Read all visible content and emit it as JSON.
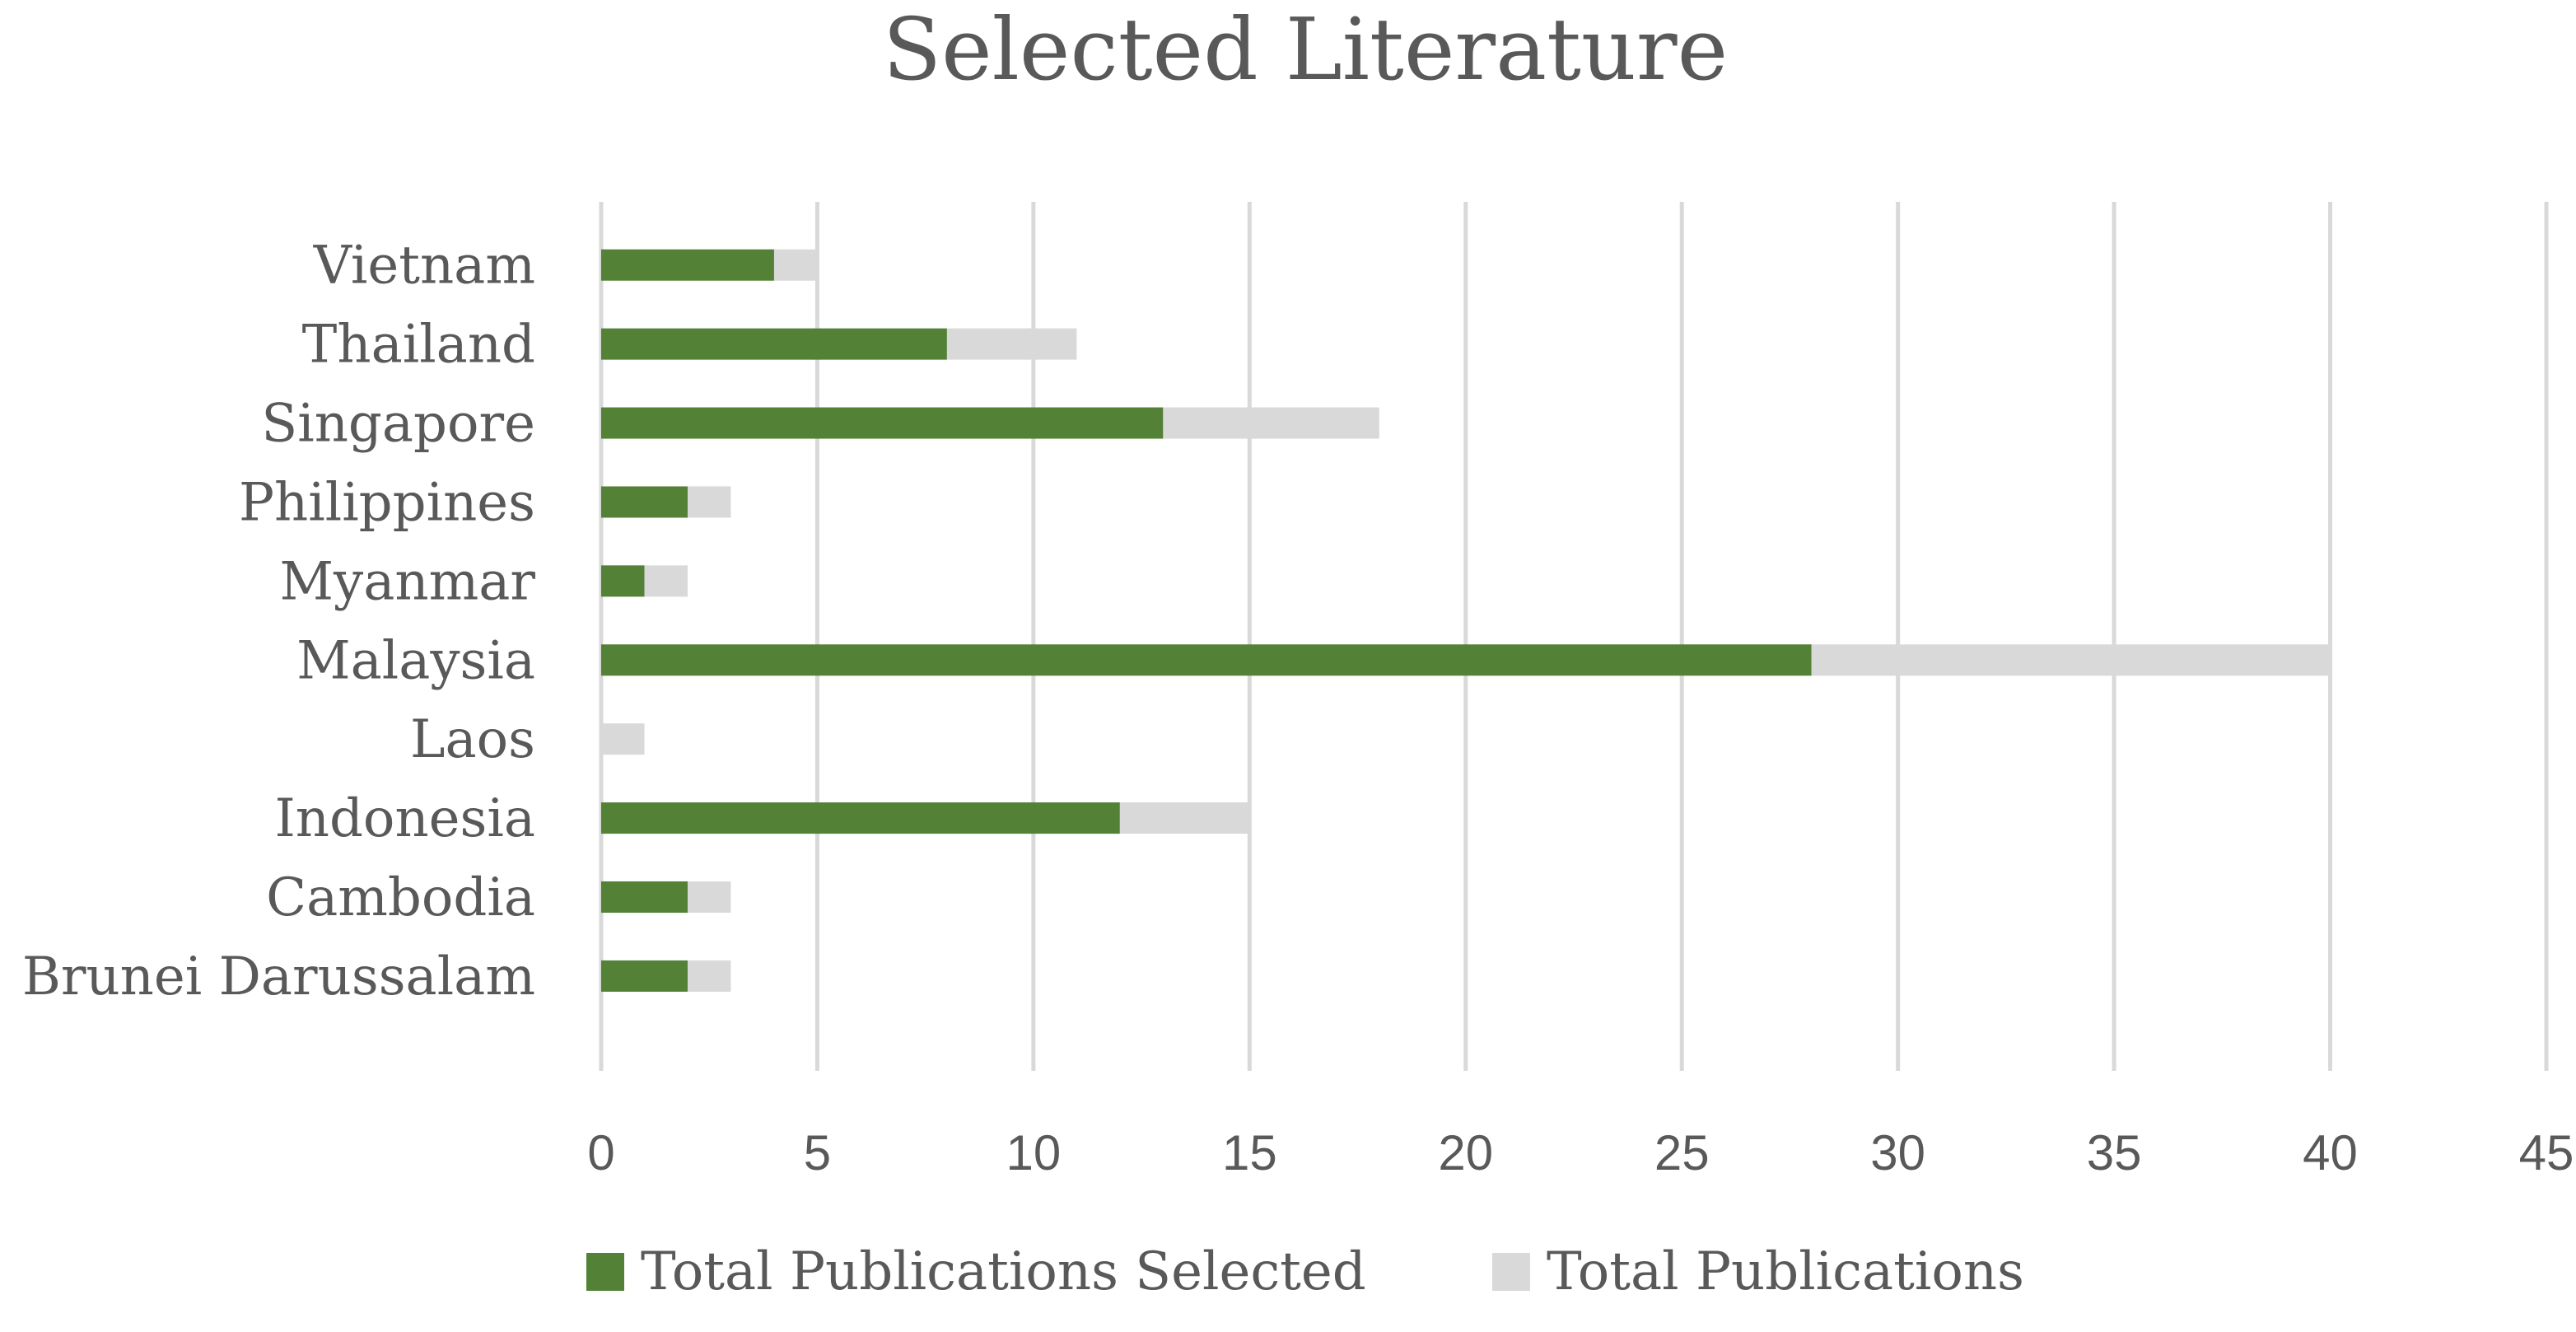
{
  "chart_data": {
    "type": "bar",
    "orientation": "horizontal",
    "stacked": true,
    "title": "Selected Literature",
    "xlabel": "",
    "ylabel": "",
    "xlim": [
      0,
      45
    ],
    "x_ticks": [
      0,
      5,
      10,
      15,
      20,
      25,
      30,
      35,
      40,
      45
    ],
    "grid": "vertical",
    "legend_position": "bottom",
    "categories": [
      "Brunei Darussalam",
      "Cambodia",
      "Indonesia",
      "Laos",
      "Malaysia",
      "Myanmar",
      "Philippines",
      "Singapore",
      "Thailand",
      "Vietnam"
    ],
    "series": [
      {
        "name": "Total Publications Selected",
        "color": "#538135",
        "values": [
          2,
          2,
          12,
          0,
          28,
          1,
          2,
          13,
          8,
          4
        ]
      },
      {
        "name": "Total Publications",
        "color": "#d9d9d9",
        "values": [
          1,
          1,
          3,
          1,
          12,
          1,
          1,
          5,
          3,
          1
        ]
      }
    ],
    "gridline_color": "#d9d9d9",
    "text_color": "#595959"
  }
}
